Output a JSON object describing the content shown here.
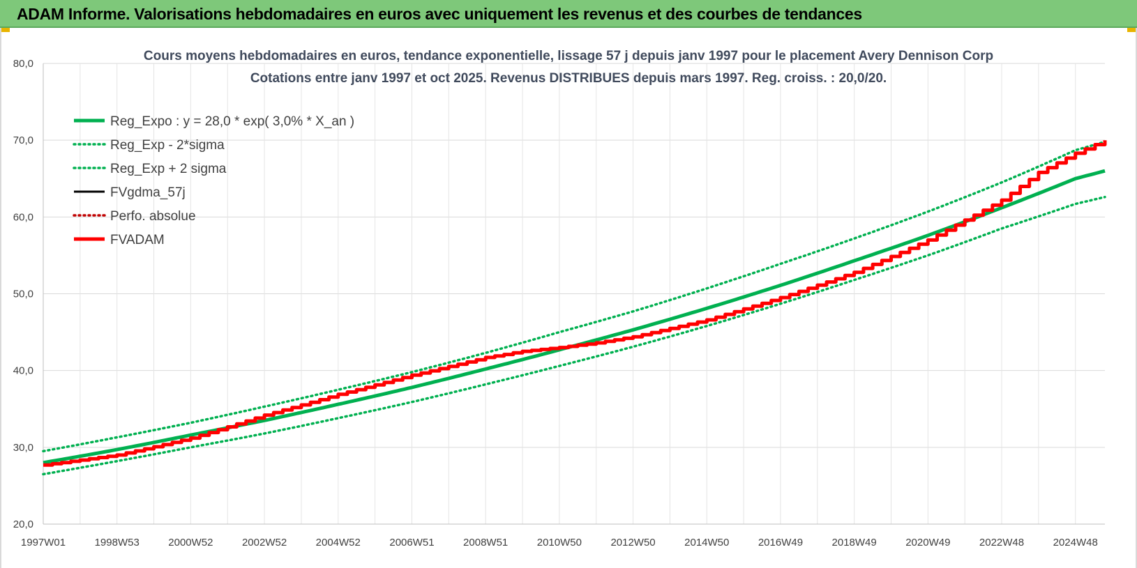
{
  "header": {
    "title": "ADAM Informe. Valorisations hebdomadaires en euros avec uniquement les revenus et des courbes de tendances"
  },
  "chart_data": {
    "type": "line",
    "title_lines": [
      "Cours moyens hebdomadaires en euros, tendance exponentielle, lissage 57 j depuis janv 1997 pour le placement Avery Dennison Corp",
      "Cotations entre janv 1997 et oct 2025. Revenus DISTRIBUES depuis mars 1997. Reg. croiss. : 20,0/20."
    ],
    "xlabel": "",
    "ylabel": "",
    "x_range_years": [
      1997.0,
      2025.8
    ],
    "ylim": [
      20,
      80
    ],
    "y_ticks": [
      "20,0",
      "30,0",
      "40,0",
      "50,0",
      "60,0",
      "70,0",
      "80,0"
    ],
    "x_tick_labels": [
      "1997W01",
      "1998W53",
      "2000W52",
      "2002W52",
      "2004W52",
      "2006W51",
      "2008W51",
      "2010W50",
      "2012W50",
      "2014W50",
      "2016W49",
      "2018W49",
      "2020W49",
      "2022W48",
      "2024W48"
    ],
    "x_tick_years": [
      1997.0,
      1999.0,
      2001.0,
      2003.0,
      2005.0,
      2007.0,
      2009.0,
      2011.0,
      2013.0,
      2015.0,
      2017.0,
      2019.0,
      2021.0,
      2023.0,
      2025.0
    ],
    "grid": "on",
    "legend_position": "top-left",
    "series": [
      {
        "name": "Reg_Expo : y = 28,0 * exp( 3,0% *  X_an )",
        "color": "#00b050",
        "style": "solid",
        "x": [
          1997,
          1999,
          2001,
          2003,
          2005,
          2007,
          2009,
          2011,
          2013,
          2015,
          2017,
          2019,
          2021,
          2023,
          2025,
          2025.8
        ],
        "y": [
          28.0,
          29.7,
          31.6,
          33.5,
          35.6,
          37.8,
          40.2,
          42.7,
          45.3,
          48.1,
          51.1,
          54.3,
          57.6,
          61.2,
          65.0,
          66.0
        ]
      },
      {
        "name": "Reg_Exp - 2*sigma",
        "color": "#00b050",
        "style": "dotted",
        "x": [
          1997,
          1999,
          2001,
          2003,
          2005,
          2007,
          2009,
          2011,
          2013,
          2015,
          2017,
          2019,
          2021,
          2023,
          2025,
          2025.8
        ],
        "y": [
          26.5,
          28.2,
          30.0,
          31.8,
          33.8,
          35.9,
          38.2,
          40.6,
          43.1,
          45.8,
          48.7,
          51.8,
          55.0,
          58.5,
          61.7,
          62.6
        ]
      },
      {
        "name": "Reg_Exp + 2 sigma",
        "color": "#00b050",
        "style": "dotted",
        "x": [
          1997,
          1999,
          2001,
          2003,
          2005,
          2007,
          2009,
          2011,
          2013,
          2015,
          2017,
          2019,
          2021,
          2023,
          2025,
          2025.8
        ],
        "y": [
          29.5,
          31.3,
          33.2,
          35.3,
          37.5,
          39.8,
          42.3,
          45.0,
          47.7,
          50.7,
          53.9,
          57.2,
          60.7,
          64.5,
          68.7,
          69.8
        ]
      },
      {
        "name": "FVgdma_57j",
        "color": "#000000",
        "style": "solid",
        "x": [],
        "y": []
      },
      {
        "name": "Perfo. absolue",
        "color": "#c00000",
        "style": "dotted",
        "x": [],
        "y": []
      },
      {
        "name": "FVADAM",
        "color": "#ff0000",
        "style": "solid",
        "x": [
          1997,
          1999,
          2001,
          2003,
          2005,
          2007,
          2009,
          2010,
          2011,
          2012,
          2013,
          2015,
          2017,
          2019,
          2021,
          2022,
          2023,
          2024,
          2025,
          2025.8
        ],
        "y": [
          27.7,
          29.0,
          31.2,
          34.2,
          36.9,
          39.4,
          41.7,
          42.5,
          43.0,
          43.6,
          44.4,
          46.6,
          49.5,
          52.8,
          57.0,
          59.6,
          62.2,
          65.8,
          68.3,
          70.0
        ]
      }
    ]
  }
}
